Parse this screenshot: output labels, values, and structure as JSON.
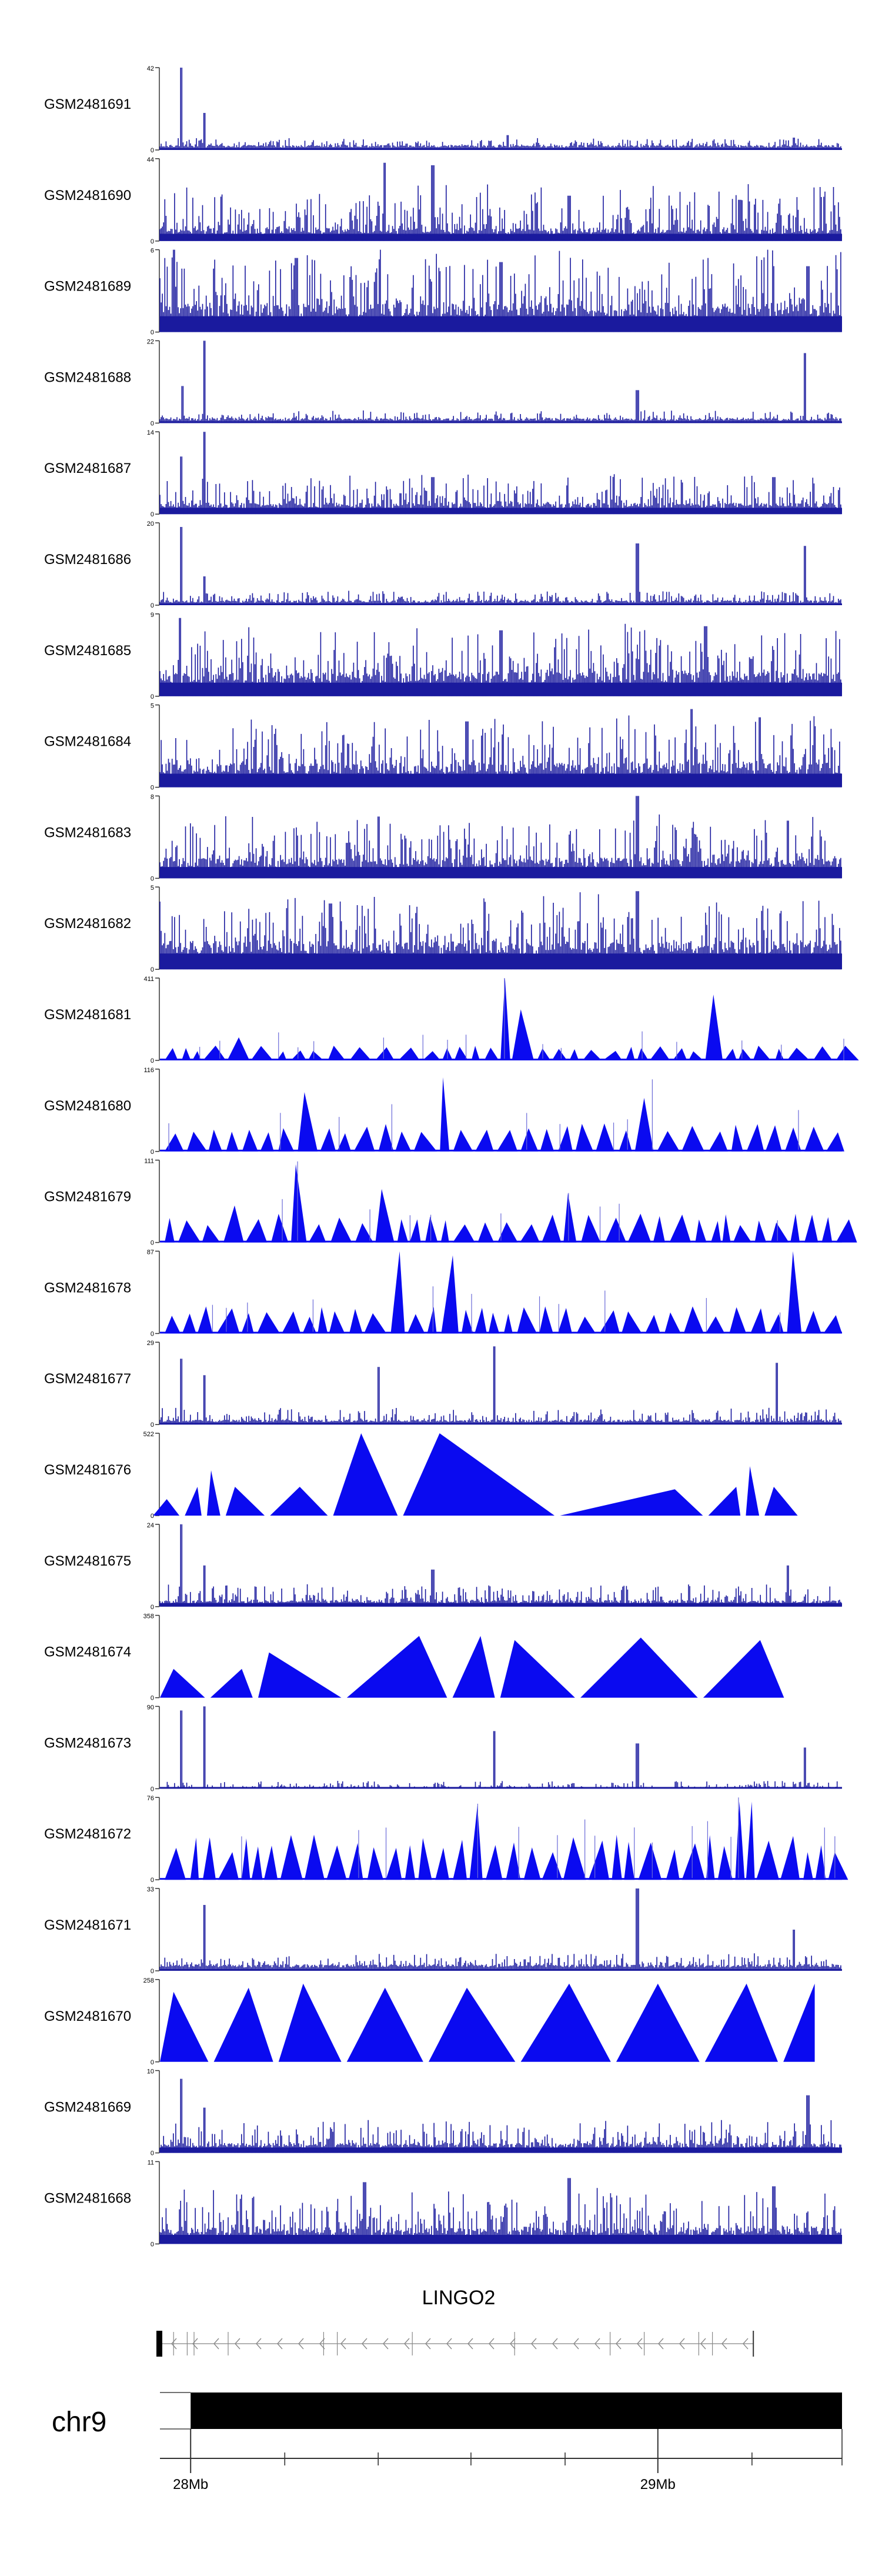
{
  "chart_data": {
    "type": "genome-track",
    "title": "",
    "tracks": [
      {
        "name": "GSM2481691",
        "ymax": "42",
        "ymin": "0",
        "style": "spiky",
        "base": 0.06,
        "noise": 0.09,
        "peaks": [
          [
            0.032,
            1.0
          ],
          [
            0.065,
            0.45
          ],
          [
            0.51,
            0.18
          ],
          [
            0.93,
            0.15
          ]
        ]
      },
      {
        "name": "GSM2481690",
        "ymax": "44",
        "ymin": "0",
        "style": "dense",
        "base": 0.16,
        "noise": 0.55,
        "peaks": [
          [
            0.33,
            0.95
          ],
          [
            0.4,
            0.92
          ],
          [
            0.6,
            0.55
          ],
          [
            0.85,
            0.5
          ]
        ]
      },
      {
        "name": "GSM2481689",
        "ymax": "6",
        "ymin": "0",
        "style": "dense",
        "base": 0.35,
        "noise": 0.7,
        "peaks": [
          [
            0.02,
            1.0
          ],
          [
            0.2,
            0.9
          ],
          [
            0.5,
            0.85
          ],
          [
            0.95,
            0.8
          ]
        ]
      },
      {
        "name": "GSM2481688",
        "ymax": "22",
        "ymin": "0",
        "style": "spiky",
        "base": 0.06,
        "noise": 0.1,
        "peaks": [
          [
            0.033,
            0.45
          ],
          [
            0.065,
            1.0
          ],
          [
            0.7,
            0.4
          ],
          [
            0.945,
            0.85
          ]
        ]
      },
      {
        "name": "GSM2481687",
        "ymax": "14",
        "ymin": "0",
        "style": "dense",
        "base": 0.14,
        "noise": 0.35,
        "peaks": [
          [
            0.032,
            0.7
          ],
          [
            0.065,
            1.0
          ],
          [
            0.4,
            0.45
          ],
          [
            0.9,
            0.45
          ]
        ]
      },
      {
        "name": "GSM2481686",
        "ymax": "20",
        "ymin": "0",
        "style": "spiky",
        "base": 0.06,
        "noise": 0.12,
        "peaks": [
          [
            0.032,
            0.95
          ],
          [
            0.065,
            0.35
          ],
          [
            0.7,
            0.75
          ],
          [
            0.945,
            0.72
          ]
        ]
      },
      {
        "name": "GSM2481685",
        "ymax": "9",
        "ymin": "0",
        "style": "dense",
        "base": 0.3,
        "noise": 0.6,
        "peaks": [
          [
            0.03,
            0.95
          ],
          [
            0.5,
            0.8
          ],
          [
            0.8,
            0.85
          ]
        ]
      },
      {
        "name": "GSM2481684",
        "ymax": "5",
        "ymin": "0",
        "style": "dense",
        "base": 0.3,
        "noise": 0.6,
        "peaks": [
          [
            0.45,
            0.8
          ],
          [
            0.78,
            0.95
          ],
          [
            0.88,
            0.85
          ]
        ]
      },
      {
        "name": "GSM2481683",
        "ymax": "8",
        "ymin": "0",
        "style": "dense",
        "base": 0.25,
        "noise": 0.55,
        "peaks": [
          [
            0.32,
            0.75
          ],
          [
            0.7,
            1.0
          ],
          [
            0.92,
            0.7
          ]
        ]
      },
      {
        "name": "GSM2481682",
        "ymax": "5",
        "ymin": "0",
        "style": "dense",
        "base": 0.35,
        "noise": 0.6,
        "peaks": [
          [
            0.25,
            0.8
          ],
          [
            0.7,
            0.95
          ]
        ]
      },
      {
        "name": "GSM2481681",
        "ymax": "411",
        "ymin": "0",
        "style": "triangles",
        "peak_rel": 0.18,
        "peaks": [
          [
            0.49,
            1.0
          ],
          [
            0.505,
            0.62
          ],
          [
            0.805,
            0.8
          ],
          [
            0.1,
            0.28
          ]
        ]
      },
      {
        "name": "GSM2481680",
        "ymax": "116",
        "ymin": "0",
        "style": "triangles",
        "peak_rel": 0.34,
        "peaks": [
          [
            0.4,
            0.9
          ],
          [
            0.195,
            0.72
          ],
          [
            0.7,
            0.65
          ],
          [
            0.9,
            0.6
          ]
        ]
      },
      {
        "name": "GSM2481679",
        "ymax": "111",
        "ymin": "0",
        "style": "triangles",
        "peak_rel": 0.35,
        "peaks": [
          [
            0.19,
            0.95
          ],
          [
            0.31,
            0.65
          ],
          [
            0.6,
            0.6
          ],
          [
            0.1,
            0.45
          ]
        ]
      },
      {
        "name": "GSM2481678",
        "ymax": "87",
        "ymin": "0",
        "style": "triangles",
        "peak_rel": 0.33,
        "peaks": [
          [
            0.335,
            1.0
          ],
          [
            0.42,
            0.95
          ],
          [
            0.915,
            1.0
          ],
          [
            0.16,
            0.72
          ]
        ]
      },
      {
        "name": "GSM2481677",
        "ymax": "29",
        "ymin": "0",
        "style": "spiky",
        "base": 0.06,
        "noise": 0.15,
        "peaks": [
          [
            0.032,
            0.8
          ],
          [
            0.065,
            0.6
          ],
          [
            0.32,
            0.7
          ],
          [
            0.49,
            0.95
          ],
          [
            0.905,
            0.75
          ]
        ]
      },
      {
        "name": "GSM2481676",
        "ymax": "522",
        "ymin": "0",
        "style": "triangles-wide",
        "peaks": [
          [
            0.01,
            0.2
          ],
          [
            0.055,
            0.35
          ],
          [
            0.075,
            0.55
          ],
          [
            0.11,
            0.35
          ],
          [
            0.205,
            0.35
          ],
          [
            0.295,
            1.0
          ],
          [
            0.41,
            1.0
          ],
          [
            0.755,
            0.32
          ],
          [
            0.845,
            0.35
          ],
          [
            0.865,
            0.6
          ],
          [
            0.9,
            0.35
          ]
        ]
      },
      {
        "name": "GSM2481675",
        "ymax": "24",
        "ymin": "0",
        "style": "dense",
        "base": 0.08,
        "noise": 0.2,
        "peaks": [
          [
            0.032,
            1.0
          ],
          [
            0.065,
            0.5
          ],
          [
            0.4,
            0.45
          ],
          [
            0.92,
            0.5
          ]
        ]
      },
      {
        "name": "GSM2481674",
        "ymax": "358",
        "ymin": "0",
        "style": "triangles-wide",
        "peaks": [
          [
            0.02,
            0.35
          ],
          [
            0.12,
            0.35
          ],
          [
            0.16,
            0.55
          ],
          [
            0.38,
            0.75
          ],
          [
            0.47,
            0.75
          ],
          [
            0.52,
            0.7
          ],
          [
            0.705,
            0.73
          ],
          [
            0.88,
            0.7
          ]
        ]
      },
      {
        "name": "GSM2481673",
        "ymax": "90",
        "ymin": "0",
        "style": "spiky",
        "base": 0.02,
        "noise": 0.08,
        "peaks": [
          [
            0.032,
            0.95
          ],
          [
            0.065,
            1.0
          ],
          [
            0.49,
            0.7
          ],
          [
            0.7,
            0.55
          ],
          [
            0.945,
            0.5
          ]
        ]
      },
      {
        "name": "GSM2481672",
        "ymax": "76",
        "ymin": "0",
        "style": "triangles",
        "peak_rel": 0.55,
        "peaks": [
          [
            0.03,
            0.95
          ],
          [
            0.45,
            0.9
          ],
          [
            0.85,
            0.95
          ]
        ]
      },
      {
        "name": "GSM2481671",
        "ymax": "33",
        "ymin": "0",
        "style": "spiky",
        "base": 0.08,
        "noise": 0.14,
        "peaks": [
          [
            0.065,
            0.8
          ],
          [
            0.7,
            1.0
          ],
          [
            0.93,
            0.5
          ]
        ]
      },
      {
        "name": "GSM2481670",
        "ymax": "258",
        "ymin": "0",
        "style": "triangles-wide",
        "peaks": [
          [
            0.02,
            0.85
          ],
          [
            0.13,
            0.9
          ],
          [
            0.21,
            0.95
          ],
          [
            0.33,
            0.9
          ],
          [
            0.45,
            0.9
          ],
          [
            0.6,
            0.95
          ],
          [
            0.73,
            0.95
          ],
          [
            0.86,
            0.95
          ],
          [
            0.96,
            0.95
          ]
        ]
      },
      {
        "name": "GSM2481669",
        "ymax": "10",
        "ymin": "0",
        "style": "dense",
        "base": 0.12,
        "noise": 0.3,
        "peaks": [
          [
            0.032,
            0.9
          ],
          [
            0.065,
            0.55
          ],
          [
            0.95,
            0.7
          ]
        ]
      },
      {
        "name": "GSM2481668",
        "ymax": "11",
        "ymin": "0",
        "style": "dense",
        "base": 0.2,
        "noise": 0.5,
        "peaks": [
          [
            0.3,
            0.75
          ],
          [
            0.6,
            0.8
          ],
          [
            0.9,
            0.7
          ]
        ]
      }
    ],
    "gene": {
      "name": "LINGO2",
      "strand": "-",
      "start_frac": 0.0,
      "end_frac": 0.87
    },
    "ideogram": {
      "chrom": "chr9",
      "start_frac": 0.045
    },
    "axis": {
      "ticks": [
        {
          "label": "28Mb",
          "frac": 0.045
        },
        {
          "label": "29Mb",
          "frac": 0.73
        }
      ],
      "minor_ticks": [
        0.183,
        0.32,
        0.456,
        0.594,
        0.868
      ]
    },
    "colors": {
      "signal": "#1a1a9e",
      "signal_light": "#6a6ad8",
      "fill": "#0a0af0",
      "axis": "#333333",
      "text": "#000000"
    }
  }
}
